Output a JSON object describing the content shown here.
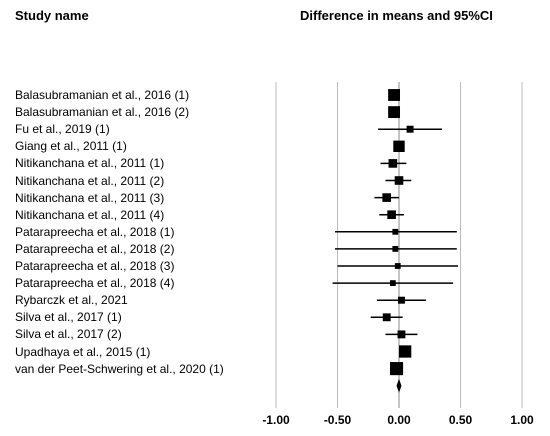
{
  "header": {
    "study_col": "Study name",
    "effect_col": "Difference in means and 95%CI"
  },
  "chart_data": {
    "type": "forest",
    "x_ticks": [
      -1.0,
      -0.5,
      0.0,
      0.5,
      1.0
    ],
    "x_tick_labels": [
      "-1.00",
      "-0.50",
      "0.00",
      "0.50",
      "1.00"
    ],
    "xlim": [
      -1.0,
      1.0
    ],
    "studies": [
      {
        "name": "Balasubramanian et al., 2016 (1)",
        "mean": -0.04,
        "lower": -0.06,
        "upper": -0.02,
        "weight": 10
      },
      {
        "name": "Balasubramanian et al., 2016 (2)",
        "mean": -0.04,
        "lower": -0.06,
        "upper": -0.02,
        "weight": 10
      },
      {
        "name": "Fu et al., 2019 (1)",
        "mean": 0.09,
        "lower": -0.17,
        "upper": 0.35,
        "weight": 2
      },
      {
        "name": "Giang et al., 2011 (1)",
        "mean": 0.0,
        "lower": -0.03,
        "upper": 0.03,
        "weight": 9
      },
      {
        "name": "Nitikanchana et al., 2011 (1)",
        "mean": -0.05,
        "lower": -0.15,
        "upper": 0.06,
        "weight": 4
      },
      {
        "name": "Nitikanchana et al., 2011 (2)",
        "mean": 0.0,
        "lower": -0.11,
        "upper": 0.1,
        "weight": 4
      },
      {
        "name": "Nitikanchana et al., 2011 (3)",
        "mean": -0.1,
        "lower": -0.2,
        "upper": 0.0,
        "weight": 4
      },
      {
        "name": "Nitikanchana et al., 2011 (4)",
        "mean": -0.06,
        "lower": -0.16,
        "upper": 0.04,
        "weight": 4
      },
      {
        "name": "Patarapreecha et al., 2018 (1)",
        "mean": -0.03,
        "lower": -0.52,
        "upper": 0.47,
        "weight": 1
      },
      {
        "name": "Patarapreecha et al., 2018 (2)",
        "mean": -0.03,
        "lower": -0.52,
        "upper": 0.47,
        "weight": 1
      },
      {
        "name": "Patarapreecha et al., 2018 (3)",
        "mean": -0.01,
        "lower": -0.5,
        "upper": 0.48,
        "weight": 1
      },
      {
        "name": "Patarapreecha et al., 2018 (4)",
        "mean": -0.05,
        "lower": -0.54,
        "upper": 0.44,
        "weight": 1
      },
      {
        "name": "Rybarczk et al., 2021",
        "mean": 0.02,
        "lower": -0.18,
        "upper": 0.22,
        "weight": 2
      },
      {
        "name": "Silva et al., 2017 (1)",
        "mean": -0.1,
        "lower": -0.23,
        "upper": 0.03,
        "weight": 3
      },
      {
        "name": "Silva et al., 2017 (2)",
        "mean": 0.02,
        "lower": -0.11,
        "upper": 0.15,
        "weight": 3
      },
      {
        "name": "Upadhaya et al., 2015 (1)",
        "mean": 0.05,
        "lower": 0.02,
        "upper": 0.08,
        "weight": 11
      },
      {
        "name": "van der Peet-Schwering et al., 2020 (1)",
        "mean": -0.02,
        "lower": -0.05,
        "upper": 0.01,
        "weight": 13
      }
    ],
    "summary": {
      "mean": 0.0,
      "lower": -0.02,
      "upper": 0.02
    },
    "line_color": "#000000",
    "ref_line_color": "#888888"
  }
}
